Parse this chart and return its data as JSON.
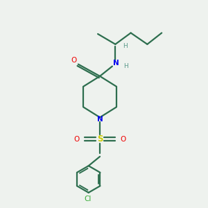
{
  "background_color": "#eef2ee",
  "bond_color": "#2d6e4e",
  "n_color": "#0000ee",
  "o_color": "#ee0000",
  "s_color": "#cccc00",
  "cl_color": "#33aa33",
  "h_color": "#5a9a8a",
  "line_width": 1.6,
  "fig_width": 3.0,
  "fig_height": 3.0,
  "xlim": [
    0,
    10
  ],
  "ylim": [
    0,
    10
  ]
}
